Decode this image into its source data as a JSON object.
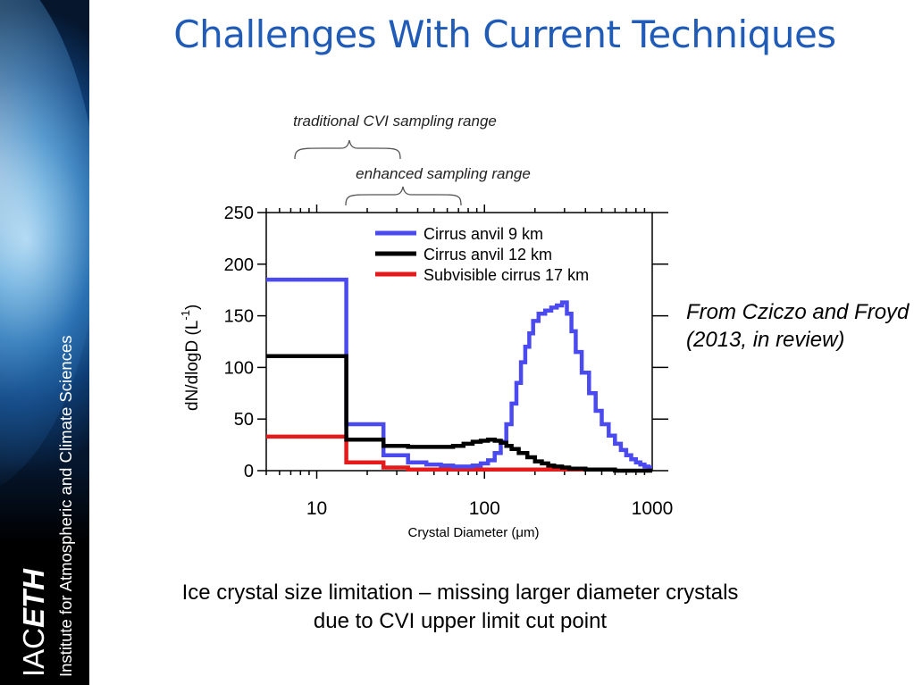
{
  "slide": {
    "title": "Challenges With Current Techniques",
    "citation": "From Cziczo and Froyd (2013, in review)",
    "caption_line1": "Ice crystal size limitation – missing larger diameter crystals",
    "caption_line2": "due to CVI upper limit cut point"
  },
  "sidebar": {
    "logo_prefix": "IAC",
    "logo_emphasis": "ETH",
    "institute": "Institute for Atmospheric and Climate Sciences"
  },
  "annotations": {
    "traditional": "traditional CVI sampling range",
    "enhanced": "enhanced sampling range"
  },
  "chart_data": {
    "type": "line",
    "step": true,
    "xscale": "log",
    "xlim": [
      5,
      1000
    ],
    "ylim": [
      0,
      250
    ],
    "xlabel": "Crystal Diameter (μm)",
    "ylabel": "dN/dlogD (L",
    "ylabel_sup": "-1",
    "ylabel_close": ")",
    "xticks": [
      10,
      100,
      1000
    ],
    "xtick_labels": [
      "10",
      "100",
      "1000"
    ],
    "yticks": [
      0,
      50,
      100,
      150,
      200,
      250
    ],
    "ytick_labels": [
      "0",
      "50",
      "100",
      "150",
      "200",
      "250"
    ],
    "legend_position": "top-right",
    "series": [
      {
        "name": "Cirrus anvil 9 km",
        "color": "#4a4af0",
        "x": [
          5,
          15,
          25,
          35,
          45,
          55,
          65,
          75,
          85,
          95,
          105,
          115,
          125,
          135,
          145,
          155,
          165,
          175,
          185,
          195,
          210,
          230,
          250,
          270,
          290,
          310,
          330,
          350,
          380,
          420,
          460,
          500,
          550,
          600,
          650,
          700,
          750,
          800,
          850,
          900,
          950
        ],
        "y": [
          185,
          45,
          15,
          8,
          6,
          5,
          4,
          4,
          5,
          7,
          10,
          17,
          28,
          45,
          65,
          85,
          105,
          120,
          133,
          145,
          152,
          155,
          158,
          160,
          163,
          152,
          135,
          115,
          95,
          75,
          58,
          45,
          34,
          26,
          20,
          15,
          11,
          8,
          6,
          4,
          3
        ],
        "xmax": 1000
      },
      {
        "name": "Cirrus anvil 12 km",
        "color": "#000000",
        "x": [
          5,
          15,
          25,
          35,
          45,
          55,
          65,
          75,
          85,
          95,
          105,
          115,
          125,
          135,
          145,
          160,
          180,
          200,
          220,
          240,
          260,
          290,
          320,
          350,
          400,
          450,
          500,
          600,
          700,
          800,
          900
        ],
        "y": [
          111,
          30,
          24,
          23,
          23,
          23,
          24,
          26,
          28,
          29,
          30,
          29,
          27,
          24,
          21,
          17,
          13,
          9,
          7,
          5,
          4,
          3,
          2,
          2,
          1,
          1,
          1,
          0,
          0,
          0,
          0
        ],
        "xmax": 1000
      },
      {
        "name": "Subvisible cirrus 17 km",
        "color": "#e61a1a",
        "x": [
          5,
          15,
          25,
          35,
          70
        ],
        "y": [
          33,
          8,
          3,
          1,
          1
        ],
        "xmax": 580
      }
    ]
  }
}
